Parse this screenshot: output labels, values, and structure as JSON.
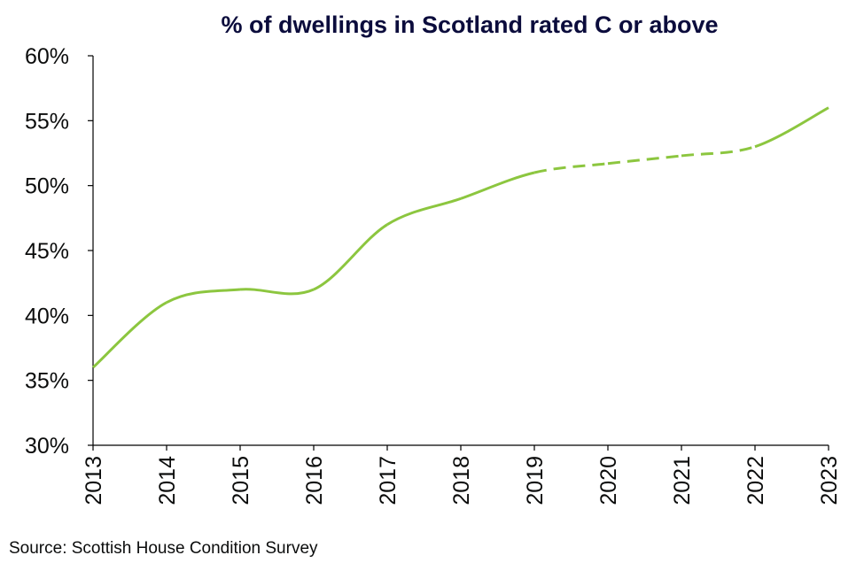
{
  "chart_data": {
    "type": "line",
    "title": "% of dwellings in Scotland rated C or above",
    "xlabel": "",
    "ylabel": "",
    "categories": [
      "2013",
      "2014",
      "2015",
      "2016",
      "2017",
      "2018",
      "2019",
      "2020",
      "2021",
      "2022",
      "2023"
    ],
    "series": [
      {
        "values": [
          36,
          41,
          42,
          42,
          47,
          49,
          51,
          51.7,
          52.3,
          53,
          56
        ],
        "dashed_between": [
          "2019",
          "2022"
        ]
      }
    ],
    "ylim": [
      30,
      60
    ],
    "yticks": [
      "30%",
      "35%",
      "40%",
      "45%",
      "50%",
      "55%",
      "60%"
    ],
    "grid": false,
    "line_color": "#8cc63f",
    "source": "Source: Scottish House Condition Survey"
  }
}
